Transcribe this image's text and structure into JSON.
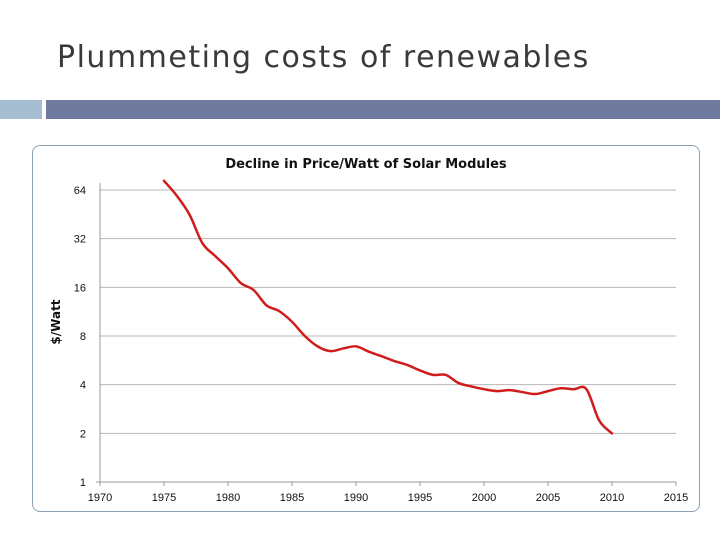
{
  "slide": {
    "title": "Plummeting costs of renewables",
    "accent_light": "#a6bed2",
    "accent_dark": "#6f7a9e"
  },
  "chart_data": {
    "type": "line",
    "title": "Decline in Price/Watt of Solar Modules",
    "xlabel": "",
    "ylabel": "$/Watt",
    "xlim": [
      1970,
      2015
    ],
    "ylim": [
      1,
      64
    ],
    "yscale": "log2",
    "grid": "horizontal",
    "xticks": [
      "1970",
      "1975",
      "1980",
      "1985",
      "1990",
      "1995",
      "2000",
      "2005",
      "2010",
      "2015"
    ],
    "yticks": [
      "1",
      "2",
      "4",
      "8",
      "16",
      "32",
      "64"
    ],
    "series_color": "#d01c1c",
    "x": [
      1975,
      1976,
      1977,
      1978,
      1979,
      1980,
      1981,
      1982,
      1983,
      1984,
      1985,
      1986,
      1987,
      1988,
      1989,
      1990,
      1991,
      1992,
      1993,
      1994,
      1995,
      1996,
      1997,
      1998,
      1999,
      2000,
      2001,
      2002,
      2003,
      2004,
      2005,
      2006,
      2007,
      2008,
      2009,
      2010
    ],
    "values": [
      73,
      59,
      45,
      30,
      25,
      21,
      17,
      15.4,
      12.4,
      11.4,
      9.8,
      8,
      6.9,
      6.45,
      6.7,
      6.9,
      6.4,
      6.0,
      5.6,
      5.3,
      4.9,
      4.6,
      4.6,
      4.1,
      3.9,
      3.75,
      3.65,
      3.7,
      3.6,
      3.5,
      3.65,
      3.8,
      3.75,
      3.75,
      2.4,
      2.0
    ]
  }
}
